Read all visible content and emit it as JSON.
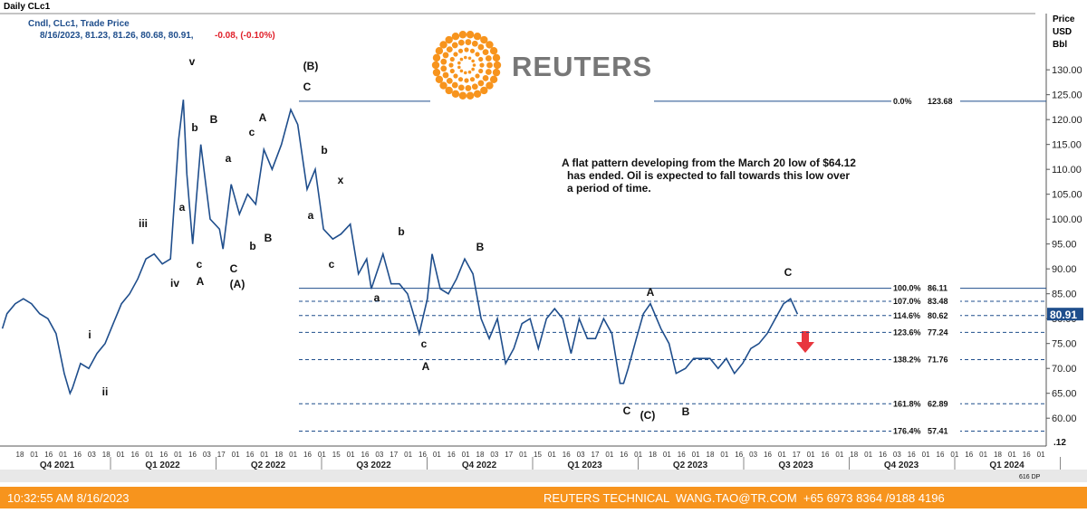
{
  "window": {
    "title": "Daily CLc1",
    "legend_name": "Cndl, CLc1, Trade Price",
    "ohlc_text": "8/16/2023, 81.23, 81.26, 80.68, 80.91,",
    "change_text": "-0.08, (-0.10%)",
    "axis_caption": [
      "Price",
      "USD",
      "Bbl"
    ],
    "logo": "REUTERS",
    "footer_time": "10:32:55 AM 8/16/2023",
    "footer_contact": "REUTERS TECHNICAL  WANG.TAO@TR.COM  +65 6973 8364 /9188 4196",
    "scroll_text": "616 DP",
    "corner_text": ".12"
  },
  "chart_data": {
    "type": "line",
    "color": "#1f4e8c",
    "annotation": [
      "A flat pattern developing from the March 20 low of $64.12",
      "has ended. Oil is expected to fall towards this low over",
      "a period of time."
    ],
    "last_price": {
      "value": 80.91,
      "color": "#1f4e8c"
    },
    "ylim": [
      54.4,
      141.3
    ],
    "yticks": [
      {
        "value": 60,
        "label": "60.00"
      },
      {
        "value": 65,
        "label": "65.00"
      },
      {
        "value": 70,
        "label": "70.00"
      },
      {
        "value": 75,
        "label": "75.00"
      },
      {
        "value": 80,
        "label": "80.00"
      },
      {
        "value": 85,
        "label": "85.00"
      },
      {
        "value": 90,
        "label": "90.00"
      },
      {
        "value": 95,
        "label": "95.00"
      },
      {
        "value": 100,
        "label": "100.00"
      },
      {
        "value": 105,
        "label": "105.00"
      },
      {
        "value": 110,
        "label": "110.00"
      },
      {
        "value": 115,
        "label": "115.00"
      },
      {
        "value": 120,
        "label": "120.00"
      },
      {
        "value": 125,
        "label": "125.00"
      },
      {
        "value": 130,
        "label": "130.00"
      }
    ],
    "xlim": [
      "2021-10-02",
      "2024-03-16"
    ],
    "quarters": [
      "Q4 2021",
      "Q1 2022",
      "Q2 2022",
      "Q3 2022",
      "Q4 2022",
      "Q1 2023",
      "Q2 2023",
      "Q3 2023",
      "Q4 2023",
      "Q1 2024"
    ],
    "day_ticks": [
      "18",
      "01",
      "16",
      "01",
      "16",
      "03",
      "18",
      "01",
      "16",
      "01",
      "16",
      "01",
      "16",
      "03",
      "17",
      "01",
      "16",
      "01",
      "18",
      "01",
      "16",
      "01",
      "15",
      "01",
      "16",
      "03",
      "17",
      "01",
      "16",
      "01",
      "16",
      "01",
      "18",
      "03",
      "17",
      "01",
      "15",
      "01",
      "16",
      "03",
      "17",
      "01",
      "16",
      "01",
      "18",
      "01",
      "16",
      "01",
      "18",
      "01",
      "16",
      "03",
      "16",
      "01",
      "17",
      "01",
      "16",
      "01",
      "18",
      "01",
      "16",
      "03",
      "16",
      "01",
      "16",
      "01",
      "16",
      "01",
      "18",
      "01",
      "16",
      "01"
    ],
    "fib_levels": [
      {
        "label": "0.0%",
        "value": 123.68
      },
      {
        "label": "100.0%",
        "value": 86.11
      },
      {
        "label": "107.0%",
        "value": 83.48
      },
      {
        "label": "114.6%",
        "value": 80.62
      },
      {
        "label": "123.6%",
        "value": 77.24
      },
      {
        "label": "138.2%",
        "value": 71.76
      },
      {
        "label": "161.8%",
        "value": 62.89
      },
      {
        "label": "176.4%",
        "value": 57.41
      }
    ],
    "wave_labels": [
      "v",
      "(B)",
      "C",
      "b",
      "B",
      "A",
      "c",
      "a",
      "b",
      "x",
      "iii",
      "a",
      "a",
      "c",
      "C",
      "b",
      "B",
      "iv",
      "A",
      "(A)",
      "b",
      "B",
      "c",
      "a",
      "c",
      "A",
      "i",
      "ii",
      "C",
      "A",
      "C",
      "(C)",
      "B"
    ],
    "series": [
      {
        "name": "CLc1",
        "color": "#1f4e8c",
        "x": [
          "2021-10-04",
          "2021-10-08",
          "2021-10-15",
          "2021-10-22",
          "2021-10-29",
          "2021-11-05",
          "2021-11-12",
          "2021-11-19",
          "2021-11-26",
          "2021-12-01",
          "2021-12-03",
          "2021-12-10",
          "2021-12-17",
          "2021-12-24",
          "2021-12-31",
          "2022-01-07",
          "2022-01-14",
          "2022-01-21",
          "2022-01-28",
          "2022-02-04",
          "2022-02-11",
          "2022-02-18",
          "2022-02-25",
          "2022-03-04",
          "2022-03-08",
          "2022-03-11",
          "2022-03-16",
          "2022-03-23",
          "2022-03-31",
          "2022-04-08",
          "2022-04-11",
          "2022-04-18",
          "2022-04-25",
          "2022-05-02",
          "2022-05-09",
          "2022-05-16",
          "2022-05-23",
          "2022-05-31",
          "2022-06-08",
          "2022-06-14",
          "2022-06-22",
          "2022-06-29",
          "2022-07-06",
          "2022-07-14",
          "2022-07-21",
          "2022-07-29",
          "2022-08-05",
          "2022-08-12",
          "2022-08-16",
          "2022-08-26",
          "2022-09-02",
          "2022-09-09",
          "2022-09-16",
          "2022-09-26",
          "2022-10-03",
          "2022-10-07",
          "2022-10-14",
          "2022-10-21",
          "2022-10-28",
          "2022-11-04",
          "2022-11-11",
          "2022-11-18",
          "2022-11-25",
          "2022-12-02",
          "2022-12-09",
          "2022-12-16",
          "2022-12-23",
          "2022-12-30",
          "2023-01-06",
          "2023-01-13",
          "2023-01-20",
          "2023-01-27",
          "2023-02-03",
          "2023-02-10",
          "2023-02-17",
          "2023-02-24",
          "2023-03-03",
          "2023-03-10",
          "2023-03-17",
          "2023-03-20",
          "2023-03-24",
          "2023-03-31",
          "2023-04-06",
          "2023-04-12",
          "2023-04-21",
          "2023-04-28",
          "2023-05-04",
          "2023-05-12",
          "2023-05-19",
          "2023-05-26",
          "2023-06-02",
          "2023-06-09",
          "2023-06-16",
          "2023-06-23",
          "2023-06-30",
          "2023-07-07",
          "2023-07-14",
          "2023-07-21",
          "2023-07-28",
          "2023-08-04",
          "2023-08-10",
          "2023-08-16"
        ],
        "values": [
          78,
          81,
          83,
          84,
          83,
          81,
          80,
          77,
          69,
          65,
          66,
          71,
          70,
          73,
          75,
          79,
          83,
          85,
          88,
          92,
          93,
          91,
          92,
          116,
          124,
          109,
          95,
          115,
          100,
          98,
          94,
          107,
          101,
          105,
          103,
          114,
          110,
          115,
          122,
          119,
          106,
          110,
          98,
          96,
          97,
          99,
          89,
          92,
          86,
          93,
          87,
          87,
          85,
          77,
          84,
          93,
          86,
          85,
          88,
          92,
          89,
          80,
          76,
          80,
          71,
          74,
          79,
          80,
          74,
          80,
          82,
          80,
          73,
          80,
          76,
          76,
          80,
          77,
          67,
          67,
          70,
          76,
          81,
          83,
          78,
          75,
          69,
          70,
          72,
          72,
          72,
          70,
          72,
          69,
          71,
          74,
          75,
          77,
          80,
          83,
          84,
          80.91
        ]
      }
    ]
  }
}
